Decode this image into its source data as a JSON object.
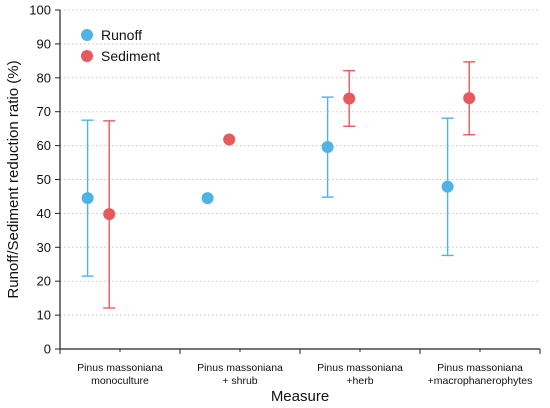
{
  "chart_data": {
    "type": "scatter",
    "xlabel": "Measure",
    "ylabel": "Runoff/Sediment reduction ratio (%)",
    "ylim": [
      0,
      100
    ],
    "yticks": [
      "0",
      "10",
      "20",
      "30",
      "40",
      "50",
      "60",
      "70",
      "80",
      "90",
      "100"
    ],
    "categories": [
      [
        "Pinus massoniana",
        "monoculture"
      ],
      [
        "Pinus massoniana",
        "+ shrub"
      ],
      [
        "Pinus massoniana",
        "+herb"
      ],
      [
        "Pinus massoniana",
        "+macrophanerophytes"
      ]
    ],
    "grid": "horizontal dotted",
    "legend_position": "top-left",
    "series": [
      {
        "name": "Runoff",
        "color": "#4fb3e8",
        "values": [
          44.5,
          44.5,
          59.6,
          47.9
        ],
        "error_low": [
          21.5,
          null,
          44.8,
          27.6
        ],
        "error_high": [
          67.5,
          null,
          74.3,
          68.1
        ]
      },
      {
        "name": "Sediment",
        "color": "#e8595d",
        "values": [
          39.8,
          61.8,
          73.9,
          74.0
        ],
        "error_low": [
          12.1,
          null,
          65.7,
          63.2
        ],
        "error_high": [
          67.3,
          null,
          82.1,
          84.7
        ]
      }
    ]
  }
}
